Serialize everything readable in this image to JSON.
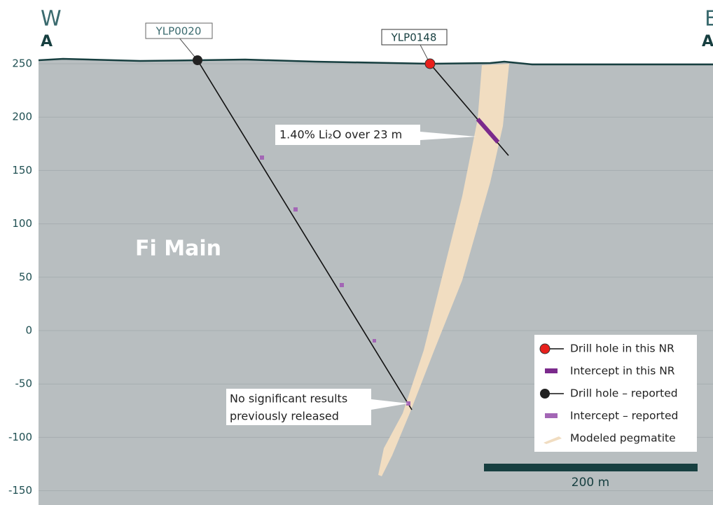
{
  "section": {
    "west": "W",
    "west_label": "A",
    "east": "E",
    "east_label": "A",
    "zone": "Fi Main"
  },
  "y_axis": {
    "ticks": [
      "250",
      "200",
      "150",
      "100",
      "50",
      "0",
      "-50",
      "-100",
      "-150"
    ]
  },
  "drill_holes": [
    {
      "id": "YLP0020"
    },
    {
      "id": "YLP0148"
    }
  ],
  "annotations": [
    {
      "lines": [
        "1.40% Li₂O over 23 m"
      ]
    },
    {
      "lines": [
        "No significant results",
        "previously released"
      ]
    }
  ],
  "legend": [
    "Drill hole in this NR",
    "Intercept in this NR",
    "Drill hole – reported",
    "Intercept – reported",
    "Modeled pegmatite"
  ],
  "scale_bar": "200 m"
}
